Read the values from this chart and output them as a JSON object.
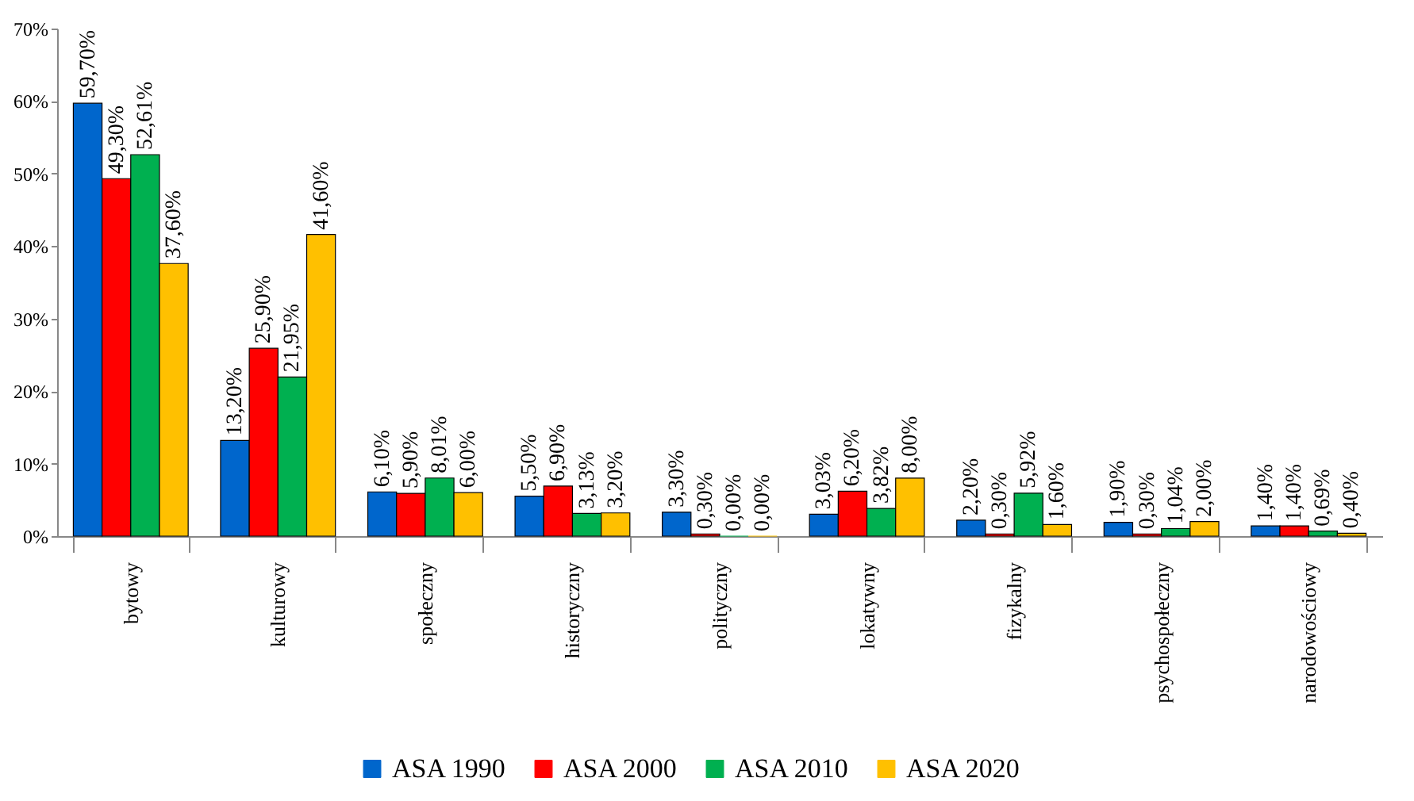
{
  "chart_data": {
    "type": "bar",
    "categories": [
      "bytowy",
      "kulturowy",
      "społeczny",
      "historyczny",
      "polityczny",
      "lokatywny",
      "fizykalny",
      "psychospołeczny",
      "narodowościowy"
    ],
    "series": [
      {
        "name": "ASA 1990",
        "color": "#0066cc",
        "values": [
          59.7,
          13.2,
          6.1,
          5.5,
          3.3,
          3.03,
          2.2,
          1.9,
          1.4
        ],
        "value_labels": [
          "59,70%",
          "13,20%",
          "6,10%",
          "5,50%",
          "3,30%",
          "3,03%",
          "2,20%",
          "1,90%",
          "1,40%"
        ]
      },
      {
        "name": "ASA 2000",
        "color": "#ff0000",
        "values": [
          49.3,
          25.9,
          5.9,
          6.9,
          0.3,
          6.2,
          0.3,
          0.3,
          1.4
        ],
        "value_labels": [
          "49,30%",
          "25,90%",
          "5,90%",
          "6,90%",
          "0,30%",
          "6,20%",
          "0,30%",
          "0,30%",
          "1,40%"
        ]
      },
      {
        "name": "ASA 2010",
        "color": "#00b050",
        "values": [
          52.61,
          21.95,
          8.01,
          3.13,
          0.0,
          3.82,
          5.92,
          1.04,
          0.69
        ],
        "value_labels": [
          "52,61%",
          "21,95%",
          "8,01%",
          "3,13%",
          "0,00%",
          "3,82%",
          "5,92%",
          "1,04%",
          "0,69%"
        ]
      },
      {
        "name": "ASA 2020",
        "color": "#ffc000",
        "values": [
          37.6,
          41.6,
          6.0,
          3.2,
          0.0,
          8.0,
          1.6,
          2.0,
          0.4
        ],
        "value_labels": [
          "37,60%",
          "41,60%",
          "6,00%",
          "3,20%",
          "0,00%",
          "8,00%",
          "1,60%",
          "2,00%",
          "0,40%"
        ]
      }
    ],
    "ylim": [
      0,
      70
    ],
    "yticks": [
      {
        "value": 0,
        "label": "0%"
      },
      {
        "value": 10,
        "label": "10%"
      },
      {
        "value": 20,
        "label": "20%"
      },
      {
        "value": 30,
        "label": "30%"
      },
      {
        "value": 40,
        "label": "40%"
      },
      {
        "value": 50,
        "label": "50%"
      },
      {
        "value": 60,
        "label": "60%"
      },
      {
        "value": 70,
        "label": "70%"
      }
    ],
    "grid": false,
    "legend": "bottom"
  }
}
